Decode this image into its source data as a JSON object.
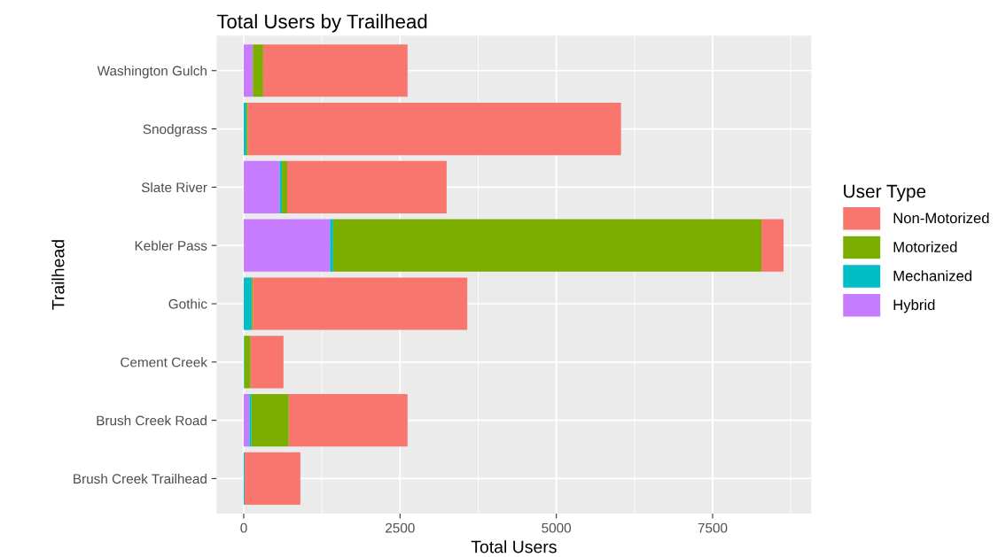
{
  "chart_data": {
    "type": "bar",
    "orientation": "horizontal",
    "stacked": true,
    "title": "Total Users by Trailhead",
    "xlabel": "Total Users",
    "ylabel": "Trailhead",
    "legend_title": "User Type",
    "legend": "right",
    "grid": true,
    "categories": [
      "Washington Gulch",
      "Snodgrass",
      "Slate River",
      "Kebler Pass",
      "Gothic",
      "Cement Creek",
      "Brush Creek Road",
      "Brush Creek Trailhead"
    ],
    "xlim": [
      -435,
      9080
    ],
    "xticks": [
      0,
      2500,
      5000,
      7500
    ],
    "series": [
      {
        "name": "Hybrid",
        "color": "#c77cff",
        "values": [
          145,
          0,
          575,
          1380,
          0,
          0,
          90,
          0
        ]
      },
      {
        "name": "Mechanized",
        "color": "#00bfc4",
        "values": [
          null,
          40,
          35,
          50,
          125,
          10,
          35,
          15
        ]
      },
      {
        "name": "Motorized",
        "color": "#7cae00",
        "values": [
          165,
          25,
          85,
          6850,
          20,
          100,
          595,
          0
        ]
      },
      {
        "name": "Non-Motorized",
        "color": "#f8766d",
        "values": [
          2310,
          5970,
          2550,
          355,
          3430,
          525,
          1900,
          890
        ]
      }
    ]
  }
}
